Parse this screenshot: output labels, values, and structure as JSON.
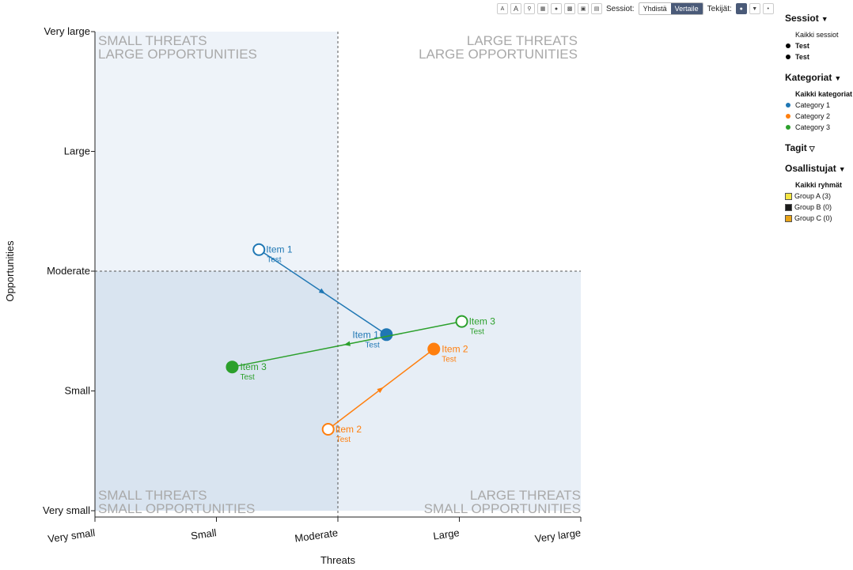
{
  "toolbar": {
    "font_small": "A",
    "font_large": "A",
    "sessions_label": "Sessiot:",
    "combine_label": "Yhdistä",
    "compare_label": "Vertaile",
    "authors_label": "Tekijät:"
  },
  "legend": {
    "sessions": {
      "title": "Sessiot",
      "all": "Kaikki sessiot",
      "items": [
        "Test",
        "Test"
      ]
    },
    "categories": {
      "title": "Kategoriat",
      "all": "Kaikki kategoriat",
      "items": [
        {
          "label": "Category 1",
          "color": "#1f77b4"
        },
        {
          "label": "Category 2",
          "color": "#ff7f0e"
        },
        {
          "label": "Category 3",
          "color": "#2ca02c"
        }
      ]
    },
    "tags": {
      "title": "Tagit"
    },
    "participants": {
      "title": "Osallistujat",
      "all": "Kaikki ryhmät",
      "items": [
        {
          "label": "Group A (3)",
          "color": "#f5e642"
        },
        {
          "label": "Group B (0)",
          "color": "#1a1a1a"
        },
        {
          "label": "Group C (0)",
          "color": "#e8a317"
        }
      ]
    }
  },
  "chart_data": {
    "type": "scatter",
    "xlabel": "Threats",
    "ylabel": "Opportunities",
    "x_ticks": [
      "Very small",
      "Small",
      "Moderate",
      "Large",
      "Very large"
    ],
    "y_ticks": [
      "Very small",
      "Small",
      "Moderate",
      "Large",
      "Very large"
    ],
    "xlim": [
      1,
      5
    ],
    "ylim": [
      1,
      5
    ],
    "quadrants": {
      "top_left": [
        "SMALL THREATS",
        "LARGE OPPORTUNITIES"
      ],
      "top_right": [
        "LARGE THREATS",
        "LARGE OPPORTUNITIES"
      ],
      "bottom_left": [
        "SMALL THREATS",
        "SMALL OPPORTUNITIES"
      ],
      "bottom_right": [
        "LARGE THREATS",
        "SMALL OPPORTUNITIES"
      ]
    },
    "series": [
      {
        "label": "Item 1",
        "session": "Test",
        "category": "Category 1",
        "color": "#1f77b4",
        "from": [
          2.35,
          3.18
        ],
        "to": [
          3.4,
          2.47
        ]
      },
      {
        "label": "Item 2",
        "session": "Test",
        "category": "Category 2",
        "color": "#ff7f0e",
        "from": [
          2.92,
          1.68
        ],
        "to": [
          3.79,
          2.35
        ]
      },
      {
        "label": "Item 3",
        "session": "Test",
        "category": "Category 3",
        "color": "#2ca02c",
        "from": [
          4.02,
          2.58
        ],
        "to": [
          2.13,
          2.2
        ]
      }
    ]
  }
}
